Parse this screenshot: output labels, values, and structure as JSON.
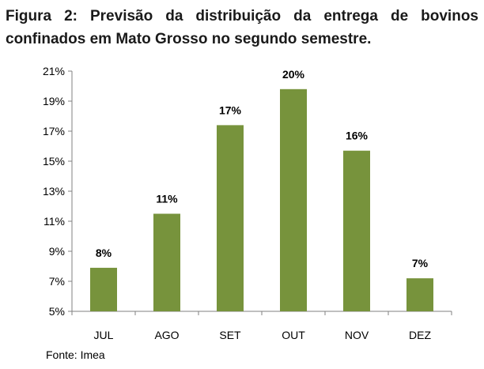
{
  "figure": {
    "title": "Figura 2: Previsão da distribuição da entrega de bovinos confinados em Mato Grosso no segundo semestre.",
    "source": "Fonte: Imea"
  },
  "chart_data": {
    "type": "bar",
    "categories": [
      "JUL",
      "AGO",
      "SET",
      "OUT",
      "NOV",
      "DEZ"
    ],
    "values": [
      7.9,
      11.5,
      17.4,
      19.8,
      15.7,
      7.2
    ],
    "data_labels": [
      "8%",
      "11%",
      "17%",
      "20%",
      "16%",
      "7%"
    ],
    "yticks": [
      "5%",
      "7%",
      "9%",
      "11%",
      "13%",
      "15%",
      "17%",
      "19%",
      "21%"
    ],
    "ylim": [
      5,
      21
    ],
    "ytick_step": 2,
    "grid": false,
    "legend": "none",
    "bar_color": "#77933c"
  }
}
